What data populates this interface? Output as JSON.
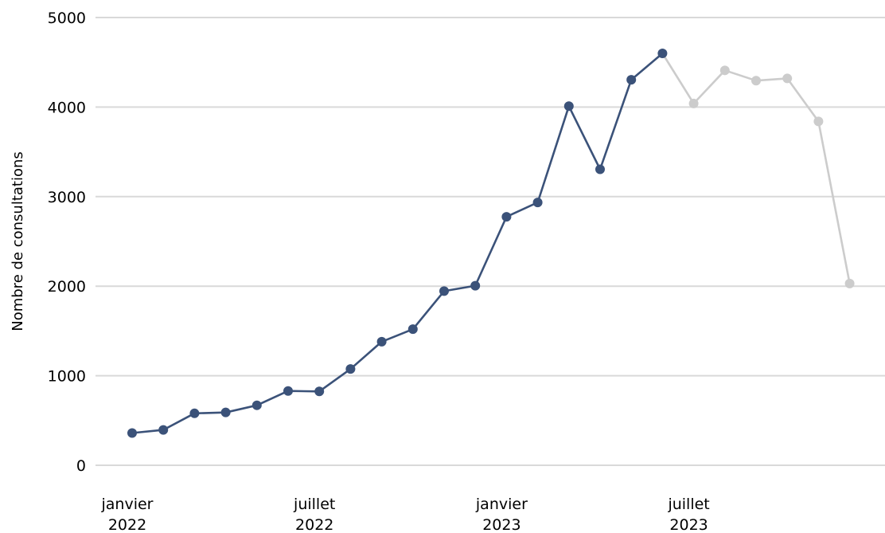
{
  "chart_data": {
    "type": "line",
    "ylabel": "Nombre de consultations",
    "xlabel": "",
    "ylim": [
      0,
      5000
    ],
    "yticks": [
      0,
      1000,
      2000,
      3000,
      4000,
      5000
    ],
    "grid": true,
    "xticks": [
      {
        "month": "2022-01",
        "label": [
          "janvier",
          "2022"
        ]
      },
      {
        "month": "2022-07",
        "label": [
          "juillet",
          "2022"
        ]
      },
      {
        "month": "2023-01",
        "label": [
          "janvier",
          "2023"
        ]
      },
      {
        "month": "2023-07",
        "label": [
          "juillet",
          "2023"
        ]
      }
    ],
    "series": [
      {
        "color": "#3b5279",
        "x": [
          "2022-01",
          "2022-02",
          "2022-03",
          "2022-04",
          "2022-05",
          "2022-06",
          "2022-07",
          "2022-08",
          "2022-09",
          "2022-10",
          "2022-11",
          "2022-12",
          "2023-01",
          "2023-02",
          "2023-03",
          "2023-04",
          "2023-05",
          "2023-06"
        ],
        "values": [
          360,
          395,
          580,
          590,
          670,
          830,
          825,
          1075,
          1380,
          1520,
          1945,
          2005,
          2775,
          2935,
          4010,
          3305,
          4305,
          4600
        ]
      },
      {
        "color": "#cccccc",
        "x": [
          "2023-06",
          "2023-07",
          "2023-08",
          "2023-09",
          "2023-10",
          "2023-11",
          "2023-12"
        ],
        "values": [
          4600,
          4040,
          4410,
          4295,
          4320,
          3840,
          2030
        ]
      }
    ]
  }
}
